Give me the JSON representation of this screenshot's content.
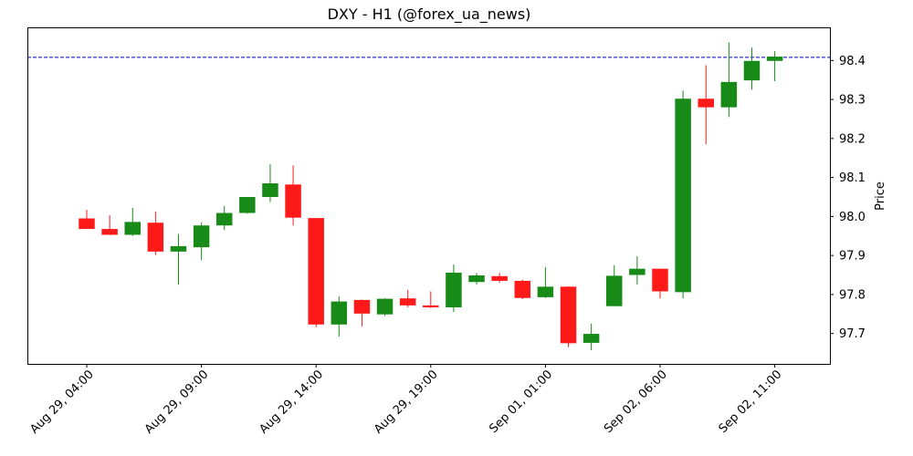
{
  "chart_data": {
    "type": "candlestick",
    "title": "DXY - H1 (@forex_ua_news)",
    "xlabel": "",
    "ylabel": "Price",
    "ylim": [
      97.622,
      98.485
    ],
    "grid": false,
    "y_ticks": [
      97.7,
      97.8,
      97.9,
      98.0,
      98.1,
      98.2,
      98.3,
      98.4
    ],
    "y_tick_labels": [
      "97.7",
      "97.8",
      "97.9",
      "98.0",
      "98.1",
      "98.2",
      "98.3",
      "98.4"
    ],
    "x_tick_labels": [
      "Aug 29, 04:00",
      "Aug 29, 09:00",
      "Aug 29, 14:00",
      "Aug 29, 19:00",
      "Sep 01, 01:00",
      "Sep 02, 06:00",
      "Sep 02, 11:00"
    ],
    "x_tick_indices": [
      0,
      5,
      10,
      15,
      20,
      25,
      30
    ],
    "up_color": "#188a18",
    "down_color": "#ff1a1a",
    "reference_line": {
      "value": 98.408,
      "color": "#0000cc",
      "style": "dashed"
    },
    "candles": [
      {
        "o": 97.995,
        "h": 98.017,
        "l": 97.968,
        "c": 97.968
      },
      {
        "o": 97.968,
        "h": 98.003,
        "l": 97.952,
        "c": 97.953
      },
      {
        "o": 97.953,
        "h": 98.022,
        "l": 97.95,
        "c": 97.986
      },
      {
        "o": 97.984,
        "h": 98.012,
        "l": 97.901,
        "c": 97.91
      },
      {
        "o": 97.91,
        "h": 97.955,
        "l": 97.825,
        "c": 97.924
      },
      {
        "o": 97.921,
        "h": 97.985,
        "l": 97.888,
        "c": 97.977
      },
      {
        "o": 97.977,
        "h": 98.027,
        "l": 97.965,
        "c": 98.009
      },
      {
        "o": 98.009,
        "h": 98.05,
        "l": 98.007,
        "c": 98.05
      },
      {
        "o": 98.05,
        "h": 98.134,
        "l": 98.037,
        "c": 98.085
      },
      {
        "o": 98.082,
        "h": 98.131,
        "l": 97.977,
        "c": 97.997
      },
      {
        "o": 97.996,
        "h": 97.996,
        "l": 97.716,
        "c": 97.723
      },
      {
        "o": 97.723,
        "h": 97.795,
        "l": 97.692,
        "c": 97.782
      },
      {
        "o": 97.786,
        "h": 97.787,
        "l": 97.718,
        "c": 97.751
      },
      {
        "o": 97.749,
        "h": 97.79,
        "l": 97.745,
        "c": 97.789
      },
      {
        "o": 97.79,
        "h": 97.812,
        "l": 97.767,
        "c": 97.772
      },
      {
        "o": 97.772,
        "h": 97.808,
        "l": 97.765,
        "c": 97.767
      },
      {
        "o": 97.767,
        "h": 97.877,
        "l": 97.755,
        "c": 97.856
      },
      {
        "o": 97.832,
        "h": 97.855,
        "l": 97.826,
        "c": 97.849
      },
      {
        "o": 97.847,
        "h": 97.855,
        "l": 97.83,
        "c": 97.835
      },
      {
        "o": 97.835,
        "h": 97.838,
        "l": 97.788,
        "c": 97.791
      },
      {
        "o": 97.793,
        "h": 97.87,
        "l": 97.791,
        "c": 97.82
      },
      {
        "o": 97.82,
        "h": 97.821,
        "l": 97.665,
        "c": 97.675
      },
      {
        "o": 97.676,
        "h": 97.725,
        "l": 97.657,
        "c": 97.699
      },
      {
        "o": 97.77,
        "h": 97.875,
        "l": 97.77,
        "c": 97.848
      },
      {
        "o": 97.85,
        "h": 97.898,
        "l": 97.826,
        "c": 97.866
      },
      {
        "o": 97.866,
        "h": 97.866,
        "l": 97.79,
        "c": 97.808
      },
      {
        "o": 97.806,
        "h": 98.323,
        "l": 97.79,
        "c": 98.302
      },
      {
        "o": 98.302,
        "h": 98.388,
        "l": 98.185,
        "c": 98.28
      },
      {
        "o": 98.28,
        "h": 98.446,
        "l": 98.255,
        "c": 98.345
      },
      {
        "o": 98.349,
        "h": 98.433,
        "l": 98.325,
        "c": 98.399
      },
      {
        "o": 98.399,
        "h": 98.424,
        "l": 98.347,
        "c": 98.41
      }
    ]
  }
}
